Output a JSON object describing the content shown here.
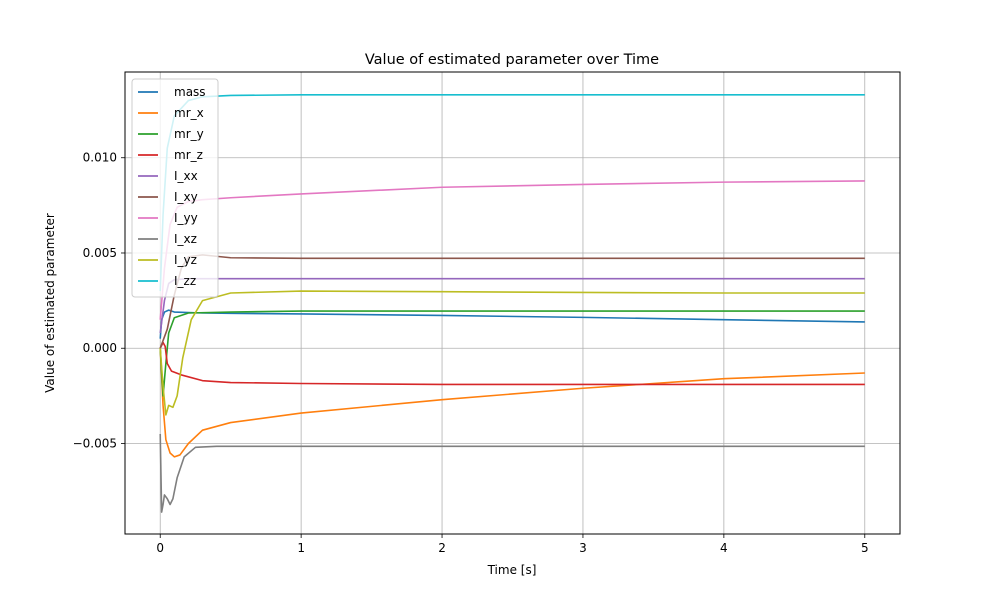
{
  "chart_data": {
    "type": "line",
    "title": "Value of estimated parameter over Time",
    "xlabel": "Time [s]",
    "ylabel": "Value of estimated parameter",
    "xlim": [
      -0.25,
      5.25
    ],
    "ylim": [
      -0.00975,
      0.0145
    ],
    "x_ticks": [
      0,
      1,
      2,
      3,
      4,
      5
    ],
    "x_tick_labels": [
      "0",
      "1",
      "2",
      "3",
      "4",
      "5"
    ],
    "y_ticks": [
      -0.005,
      0.0,
      0.005,
      0.01
    ],
    "y_tick_labels": [
      "−0.005",
      "0.000",
      "0.005",
      "0.010"
    ],
    "grid": true,
    "legend_position": "top-left",
    "series": [
      {
        "name": "mass",
        "color": "#1f77b4",
        "points": [
          [
            0,
            0.0005
          ],
          [
            0.01,
            0.0015
          ],
          [
            0.03,
            0.0019
          ],
          [
            0.06,
            0.002
          ],
          [
            0.1,
            0.0019
          ],
          [
            0.3,
            0.00185
          ],
          [
            0.5,
            0.00183
          ],
          [
            1,
            0.0018
          ],
          [
            2,
            0.00172
          ],
          [
            3,
            0.00162
          ],
          [
            4,
            0.0015
          ],
          [
            5,
            0.00138
          ]
        ]
      },
      {
        "name": "mr_x",
        "color": "#ff7f0e",
        "points": [
          [
            0,
            0.0
          ],
          [
            0.02,
            -0.003
          ],
          [
            0.04,
            -0.0048
          ],
          [
            0.07,
            -0.0055
          ],
          [
            0.1,
            -0.0057
          ],
          [
            0.14,
            -0.0056
          ],
          [
            0.2,
            -0.005
          ],
          [
            0.3,
            -0.0043
          ],
          [
            0.5,
            -0.0039
          ],
          [
            1,
            -0.0034
          ],
          [
            2,
            -0.0027
          ],
          [
            3,
            -0.0021
          ],
          [
            4,
            -0.0016
          ],
          [
            5,
            -0.0013
          ]
        ]
      },
      {
        "name": "mr_y",
        "color": "#2ca02c",
        "points": [
          [
            0,
            0.0
          ],
          [
            0.02,
            -0.0025
          ],
          [
            0.04,
            -0.0008
          ],
          [
            0.06,
            0.0008
          ],
          [
            0.1,
            0.0016
          ],
          [
            0.2,
            0.00185
          ],
          [
            0.5,
            0.0019
          ],
          [
            1,
            0.00195
          ],
          [
            2,
            0.00195
          ],
          [
            3,
            0.00195
          ],
          [
            4,
            0.00195
          ],
          [
            5,
            0.00195
          ]
        ]
      },
      {
        "name": "mr_z",
        "color": "#d62728",
        "points": [
          [
            0,
            0.0
          ],
          [
            0.02,
            0.0003
          ],
          [
            0.035,
            0.0001
          ],
          [
            0.05,
            -0.0008
          ],
          [
            0.08,
            -0.0012
          ],
          [
            0.15,
            -0.0014
          ],
          [
            0.3,
            -0.0017
          ],
          [
            0.5,
            -0.0018
          ],
          [
            1,
            -0.00185
          ],
          [
            2,
            -0.0019
          ],
          [
            3,
            -0.0019
          ],
          [
            4,
            -0.0019
          ],
          [
            5,
            -0.0019
          ]
        ]
      },
      {
        "name": "I_xx",
        "color": "#9467bd",
        "points": [
          [
            0,
            0.0008
          ],
          [
            0.03,
            0.0025
          ],
          [
            0.06,
            0.0034
          ],
          [
            0.1,
            0.0036
          ],
          [
            0.2,
            0.00365
          ],
          [
            0.5,
            0.00365
          ],
          [
            1,
            0.00365
          ],
          [
            2,
            0.00365
          ],
          [
            3,
            0.00365
          ],
          [
            4,
            0.00365
          ],
          [
            5,
            0.00365
          ]
        ]
      },
      {
        "name": "I_xy",
        "color": "#8c564b",
        "points": [
          [
            0,
            0.0
          ],
          [
            0.05,
            0.001
          ],
          [
            0.1,
            0.0028
          ],
          [
            0.15,
            0.0042
          ],
          [
            0.2,
            0.0048
          ],
          [
            0.3,
            0.0049
          ],
          [
            0.5,
            0.00475
          ],
          [
            1,
            0.00472
          ],
          [
            2,
            0.00472
          ],
          [
            3,
            0.00472
          ],
          [
            4,
            0.00472
          ],
          [
            5,
            0.00472
          ]
        ]
      },
      {
        "name": "I_yy",
        "color": "#e377c2",
        "points": [
          [
            0,
            0.0015
          ],
          [
            0.03,
            0.0042
          ],
          [
            0.07,
            0.0065
          ],
          [
            0.12,
            0.0074
          ],
          [
            0.2,
            0.0077
          ],
          [
            0.3,
            0.0078
          ],
          [
            0.5,
            0.0079
          ],
          [
            1,
            0.0081
          ],
          [
            2,
            0.00845
          ],
          [
            3,
            0.0086
          ],
          [
            4,
            0.00872
          ],
          [
            5,
            0.00878
          ]
        ]
      },
      {
        "name": "I_xz",
        "color": "#7f7f7f",
        "points": [
          [
            0,
            -0.0045
          ],
          [
            0.01,
            -0.0086
          ],
          [
            0.02,
            -0.0082
          ],
          [
            0.03,
            -0.0077
          ],
          [
            0.05,
            -0.0079
          ],
          [
            0.07,
            -0.0082
          ],
          [
            0.09,
            -0.0079
          ],
          [
            0.12,
            -0.0068
          ],
          [
            0.17,
            -0.0057
          ],
          [
            0.25,
            -0.0052
          ],
          [
            0.4,
            -0.00515
          ],
          [
            1,
            -0.00515
          ],
          [
            2,
            -0.00515
          ],
          [
            3,
            -0.00515
          ],
          [
            4,
            -0.00515
          ],
          [
            5,
            -0.00515
          ]
        ]
      },
      {
        "name": "I_yz",
        "color": "#bcbd22",
        "points": [
          [
            0,
            0.0
          ],
          [
            0.02,
            -0.002
          ],
          [
            0.04,
            -0.0035
          ],
          [
            0.06,
            -0.003
          ],
          [
            0.09,
            -0.0031
          ],
          [
            0.12,
            -0.0025
          ],
          [
            0.16,
            -0.0005
          ],
          [
            0.22,
            0.0015
          ],
          [
            0.3,
            0.0025
          ],
          [
            0.5,
            0.0029
          ],
          [
            1,
            0.003
          ],
          [
            2,
            0.00297
          ],
          [
            3,
            0.00293
          ],
          [
            4,
            0.0029
          ],
          [
            5,
            0.0029
          ]
        ]
      },
      {
        "name": "I_zz",
        "color": "#17becf",
        "points": [
          [
            0,
            0.003
          ],
          [
            0.02,
            0.007
          ],
          [
            0.05,
            0.0105
          ],
          [
            0.1,
            0.0122
          ],
          [
            0.2,
            0.013
          ],
          [
            0.3,
            0.0132
          ],
          [
            0.5,
            0.01327
          ],
          [
            1,
            0.0133
          ],
          [
            2,
            0.0133
          ],
          [
            3,
            0.0133
          ],
          [
            4,
            0.0133
          ],
          [
            5,
            0.0133
          ]
        ]
      }
    ]
  }
}
